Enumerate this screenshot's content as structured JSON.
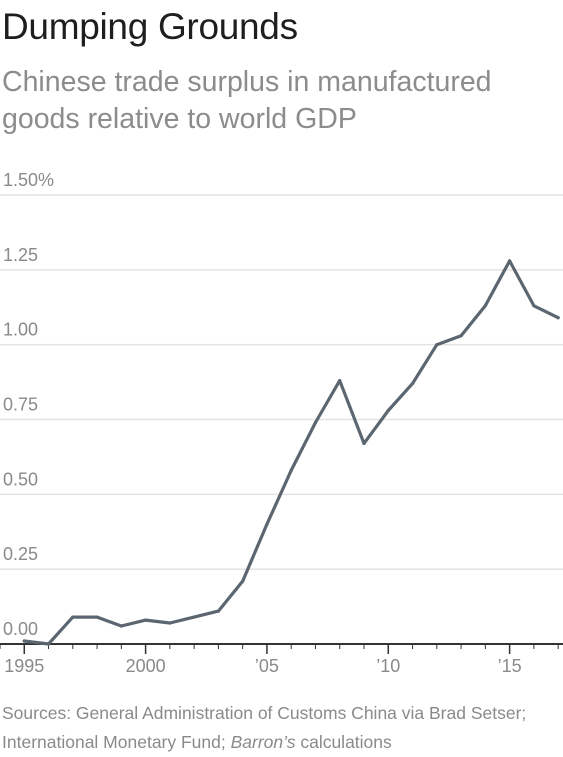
{
  "chart_data": {
    "type": "line",
    "title": "Dumping Grounds",
    "subtitle": "Chinese trade surplus in manufactured goods relative to world GDP",
    "xlabel": "",
    "ylabel": "",
    "x": [
      1995,
      1996,
      1997,
      1998,
      1999,
      2000,
      2001,
      2002,
      2003,
      2004,
      2005,
      2006,
      2007,
      2008,
      2009,
      2010,
      2011,
      2012,
      2013,
      2014,
      2015,
      2016,
      2017
    ],
    "series": [
      {
        "name": "",
        "values": [
          0.01,
          0.0,
          0.09,
          0.09,
          0.06,
          0.08,
          0.07,
          0.09,
          0.11,
          0.21,
          0.4,
          0.58,
          0.74,
          0.88,
          0.67,
          0.78,
          0.87,
          1.0,
          1.03,
          1.13,
          1.28,
          1.13,
          1.09
        ]
      }
    ],
    "xlim": [
      1994,
      2017.2
    ],
    "ylim": [
      0,
      1.5
    ],
    "y_ticks": [
      {
        "value": 1.5,
        "label": "1.50%"
      },
      {
        "value": 1.25,
        "label": "1.25"
      },
      {
        "value": 1.0,
        "label": "1.00"
      },
      {
        "value": 0.75,
        "label": "0.75"
      },
      {
        "value": 0.5,
        "label": "0.50"
      },
      {
        "value": 0.25,
        "label": "0.25"
      },
      {
        "value": 0.0,
        "label": "0.00"
      }
    ],
    "x_ticks": [
      {
        "value": 1995,
        "label": "1995"
      },
      {
        "value": 2000,
        "label": "2000"
      },
      {
        "value": 2005,
        "label": "’05"
      },
      {
        "value": 2010,
        "label": "’10"
      },
      {
        "value": 2015,
        "label": "’15"
      }
    ],
    "grid": true,
    "line_color": "#5b6670",
    "grid_color": "#e3e3e3"
  },
  "source": {
    "prefix": "Sources: General Administration of Customs China via Brad Setser; International Monetary Fund; ",
    "italic": "Barron’s",
    "suffix": " calculations"
  }
}
